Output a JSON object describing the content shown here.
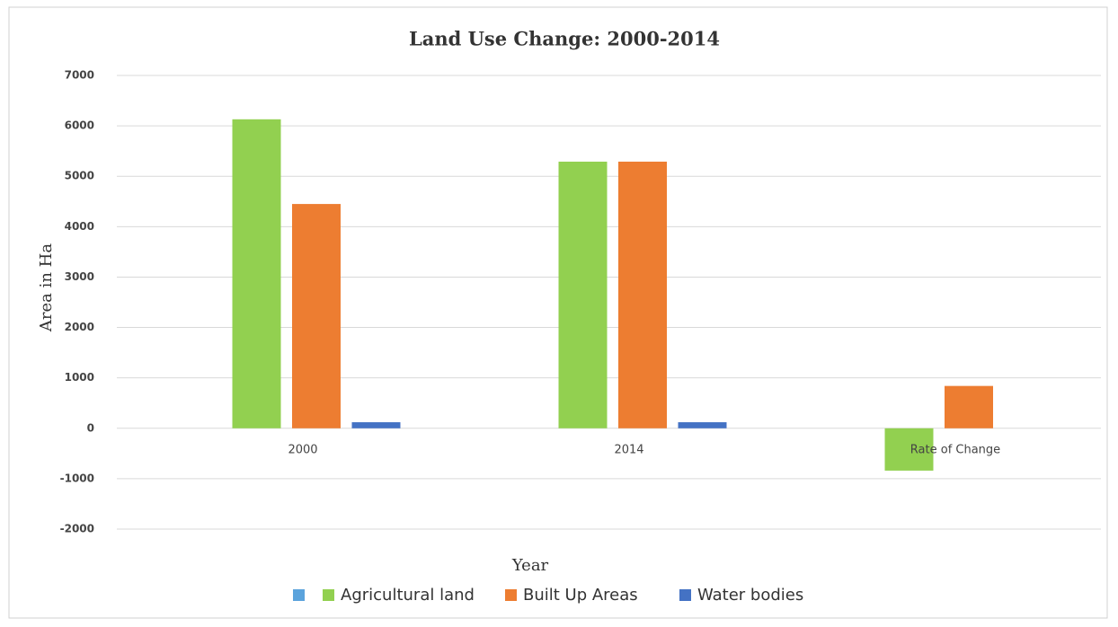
{
  "chart_data": {
    "type": "bar",
    "title": "Land Use Change: 2000-2014",
    "x_label": "Year",
    "y_label": "Area in Ha",
    "categories": [
      "2000",
      "2014",
      "Rate of Change"
    ],
    "series": [
      {
        "name": null,
        "color": "#5ba3dc",
        "values": [
          null,
          null,
          null
        ]
      },
      {
        "name": "Agricultural land",
        "color": "#92d050",
        "values": [
          6130,
          5290,
          -840
        ]
      },
      {
        "name": "Built Up Areas",
        "color": "#ed7d31",
        "values": [
          4450,
          5290,
          840
        ]
      },
      {
        "name": "Water bodies",
        "color": "#4472c4",
        "values": [
          120,
          120,
          0
        ]
      }
    ],
    "ylim": [
      -2000,
      7000
    ],
    "yticks": [
      -2000,
      -1000,
      0,
      1000,
      2000,
      3000,
      4000,
      5000,
      6000,
      7000
    ],
    "grid": true,
    "legend": "bottom"
  }
}
